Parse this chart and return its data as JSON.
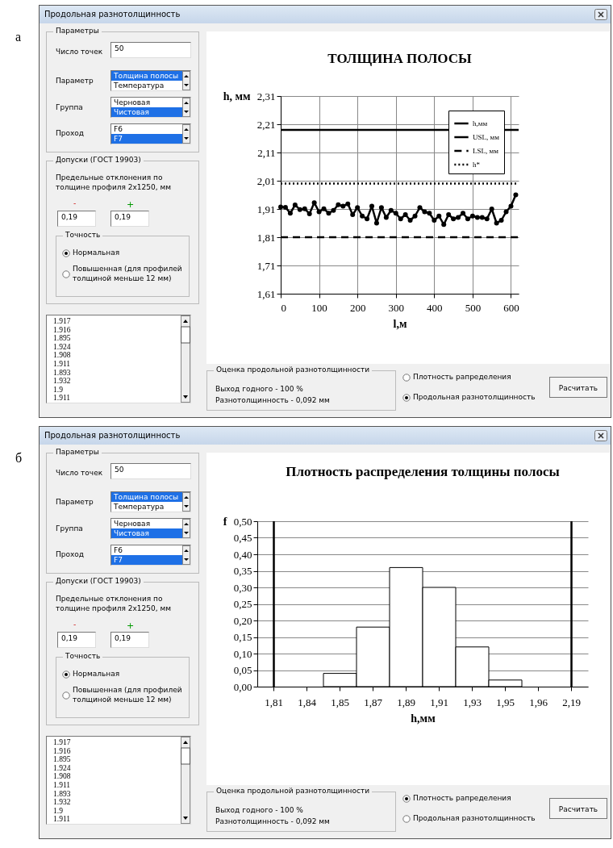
{
  "chart_data": [
    {
      "type": "other",
      "title": "Продольная разнотолщинность",
      "annotations": [
        "Параметры",
        "Число точек",
        "50",
        "Параметр",
        "Толщина полосы",
        "Температура",
        "Группа",
        "Черновая",
        "Чистовая",
        "Проход",
        "F6",
        "F7",
        "Допуски (ГОСТ 19903)",
        "Предельные отклонения по толщине профиля 2x1250, мм",
        "-",
        "+",
        "0,19",
        "0,19",
        "Точность",
        "Нормальная",
        "Повышенная (для профилей толщиной меньше 12 мм)",
        "1.917",
        "1.916",
        "1.895",
        "1.924",
        "1.908",
        "1.911",
        "1.893",
        "1.932",
        "1.9",
        "1.911",
        "Оценка продольной разнотолщинности",
        "Выход годного - 100 %",
        "Разнотолщинность - 0,092 мм",
        "Плотность рапределения",
        "Продольная разнотолщинность",
        "Расчитать",
        "а"
      ]
    },
    {
      "type": "line",
      "title": "ТОЛЩИНА ПОЛОСЫ",
      "xlabel": "l,м",
      "ylabel": "h, мм",
      "xlim": [
        0,
        620
      ],
      "xticks": [
        0,
        100,
        200,
        300,
        400,
        500,
        600
      ],
      "ylim": [
        1.61,
        2.31
      ],
      "yticks": [
        {
          "value": 1.61,
          "label": "1,61"
        },
        {
          "value": 1.71,
          "label": "1,71"
        },
        {
          "value": 1.81,
          "label": "1,81"
        },
        {
          "value": 1.91,
          "label": "1,91"
        },
        {
          "value": 2.01,
          "label": "2,01"
        },
        {
          "value": 2.11,
          "label": "2,11"
        },
        {
          "value": 2.21,
          "label": "2,21"
        },
        {
          "value": 2.31,
          "label": "2,31"
        }
      ],
      "grid": true,
      "legend": "top right",
      "series": [
        {
          "name": "h,мм",
          "color": "#000000",
          "marker": "circle",
          "line_style": "solid",
          "x": [
            0,
            12.5,
            25,
            37.5,
            50,
            62.5,
            75,
            87.5,
            100,
            112.5,
            125,
            137.5,
            150,
            162.5,
            175,
            187.5,
            200,
            212.5,
            225,
            237.5,
            250,
            262.5,
            275,
            287.5,
            300,
            312.5,
            325,
            337.5,
            350,
            362.5,
            375,
            387.5,
            400,
            412.5,
            425,
            437.5,
            450,
            462.5,
            475,
            487.5,
            500,
            512.5,
            525,
            537.5,
            550,
            562.5,
            575,
            587.5,
            600,
            612.5
          ],
          "values": [
            1.917,
            1.916,
            1.895,
            1.924,
            1.908,
            1.911,
            1.893,
            1.932,
            1.9,
            1.911,
            1.895,
            1.905,
            1.925,
            1.92,
            1.928,
            1.89,
            1.915,
            1.885,
            1.875,
            1.92,
            1.86,
            1.915,
            1.88,
            1.905,
            1.895,
            1.875,
            1.89,
            1.87,
            1.885,
            1.915,
            1.9,
            1.895,
            1.87,
            1.885,
            1.855,
            1.89,
            1.875,
            1.88,
            1.895,
            1.875,
            1.885,
            1.88,
            1.88,
            1.875,
            1.91,
            1.86,
            1.87,
            1.9,
            1.92,
            1.96
          ]
        },
        {
          "name": "USL, мм",
          "color": "#000000",
          "marker": "none",
          "line_style": "solid",
          "x": [
            0,
            620
          ],
          "values": [
            2.19,
            2.19
          ]
        },
        {
          "name": "LSL, мм",
          "color": "#000000",
          "marker": "none",
          "line_style": "dashed",
          "x": [
            0,
            620
          ],
          "values": [
            1.81,
            1.81
          ]
        },
        {
          "name": "h*",
          "color": "#000000",
          "marker": "none",
          "line_style": "dotted",
          "x": [
            0,
            620
          ],
          "values": [
            2.0,
            2.0
          ]
        }
      ]
    },
    {
      "type": "other",
      "title": "Продольная разнотолщинность",
      "annotations": [
        "Параметры",
        "Число точек",
        "50",
        "Параметр",
        "Толщина полосы",
        "Температура",
        "Группа",
        "Черновая",
        "Чистовая",
        "Проход",
        "F6",
        "F7",
        "Допуски (ГОСТ 19903)",
        "Предельные отклонения по толщине профиля 2x1250, мм",
        "-",
        "+",
        "0,19",
        "0,19",
        "Точность",
        "Нормальная",
        "Повышенная (для профилей толщиной меньше 12 мм)",
        "1.917",
        "1.916",
        "1.895",
        "1.924",
        "1.908",
        "1.911",
        "1.893",
        "1.932",
        "1.9",
        "1.911",
        "Оценка продольной разнотолщинности",
        "Выход годного - 100 %",
        "Разнотолщинность - 0,092 мм",
        "Плотность рапределения",
        "Продольная разнотолщинность",
        "Расчитать",
        "б"
      ]
    },
    {
      "type": "bar",
      "title": "Плотность распределения толщины полосы",
      "xlabel": "h,мм",
      "ylabel": "f",
      "categories": [
        "1,81",
        "1,84",
        "1,85",
        "1,87",
        "1,89",
        "1,91",
        "1,93",
        "1,95",
        "1,96",
        "2,19"
      ],
      "values": [
        0,
        0,
        0.04,
        0.18,
        0.36,
        0.3,
        0.12,
        0.02,
        0,
        0
      ],
      "color": "#ffffff",
      "ylim": [
        0,
        0.5
      ],
      "yticks": [
        {
          "value": 0,
          "label": "0,00"
        },
        {
          "value": 0.05,
          "label": "0,05"
        },
        {
          "value": 0.1,
          "label": "0,10"
        },
        {
          "value": 0.15,
          "label": "0,15"
        },
        {
          "value": 0.2,
          "label": "0,20"
        },
        {
          "value": 0.25,
          "label": "0,25"
        },
        {
          "value": 0.3,
          "label": "0,30"
        },
        {
          "value": 0.35,
          "label": "0,35"
        },
        {
          "value": 0.4,
          "label": "0,40"
        },
        {
          "value": 0.45,
          "label": "0,45"
        },
        {
          "value": 0.5,
          "label": "0,50"
        }
      ],
      "grid": "y",
      "ref_lines": [
        {
          "axis": "x",
          "value": "1,81",
          "color": "#000000"
        },
        {
          "axis": "x",
          "value": "2,19",
          "color": "#000000"
        }
      ]
    }
  ]
}
